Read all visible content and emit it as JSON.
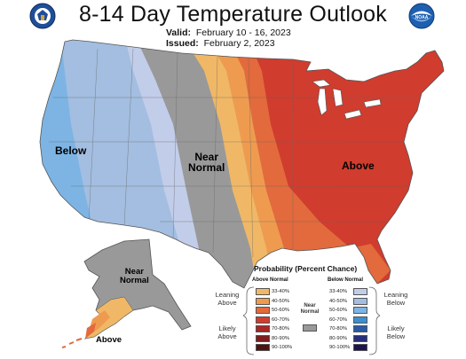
{
  "header": {
    "title": "8-14 Day Temperature Outlook",
    "valid_label": "Valid:",
    "valid_value": "February 10 - 16, 2023",
    "issued_label": "Issued:",
    "issued_value": "February 2, 2023"
  },
  "logos": {
    "left": "commerce-seal-icon",
    "right": "noaa-logo-icon",
    "right_text": "NOAA"
  },
  "map_labels": {
    "below": "Below",
    "near_normal_line1": "Near",
    "near_normal_line2": "Normal",
    "above": "Above",
    "alaska_near_line1": "Near",
    "alaska_near_line2": "Normal",
    "alaska_above": "Above"
  },
  "legend": {
    "title": "Probability (Percent Chance)",
    "above_header": "Above Normal",
    "below_header": "Below Normal",
    "near_label_line1": "Near",
    "near_label_line2": "Normal",
    "leaning_above_1": "Leaning",
    "leaning_above_2": "Above",
    "likely_above_1": "Likely",
    "likely_above_2": "Above",
    "leaning_below_1": "Leaning",
    "leaning_below_2": "Below",
    "likely_below_1": "Likely",
    "likely_below_2": "Below",
    "above_ranges": [
      "33-40%",
      "40-50%",
      "50-60%",
      "60-70%",
      "70-80%",
      "80-90%",
      "90-100%"
    ],
    "below_ranges": [
      "33-40%",
      "40-50%",
      "50-60%",
      "60-70%",
      "70-80%",
      "80-90%",
      "90-100%"
    ],
    "above_colors": [
      "#f0b866",
      "#ee9b50",
      "#e26a3c",
      "#d03c2e",
      "#a82626",
      "#7d1d1d",
      "#4e1212"
    ],
    "below_colors": [
      "#c2cdea",
      "#a3bee0",
      "#7db4e4",
      "#3d8fd0",
      "#2a5aa6",
      "#26307a",
      "#1c1452"
    ],
    "near_color": "#999999"
  }
}
